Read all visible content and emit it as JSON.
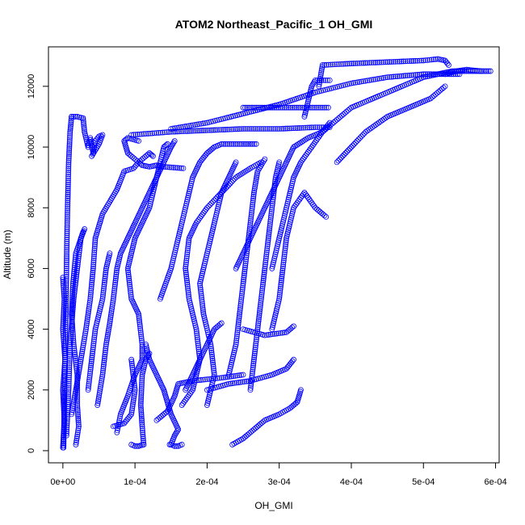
{
  "chart_data": {
    "type": "scatter",
    "title": "ATOM2 Northeast_Pacific_1 OH_GMI",
    "xlabel": "OH_GMI",
    "ylabel": "Altitude (m)",
    "xlim": [
      -2e-05,
      0.000605
    ],
    "ylim": [
      -400,
      13300
    ],
    "x_ticks": [
      0,
      0.0001,
      0.0002,
      0.0003,
      0.0004,
      0.0005,
      0.0006
    ],
    "x_tick_labels": [
      "0e+00",
      "1e-04",
      "2e-04",
      "3e-04",
      "4e-04",
      "5e-04",
      "6e-04"
    ],
    "y_ticks": [
      0,
      2000,
      4000,
      6000,
      8000,
      10000,
      12000
    ],
    "y_tick_labels": [
      "0",
      "2000",
      "4000",
      "6000",
      "8000",
      "10000",
      "12000"
    ],
    "grid": false,
    "legend": "none",
    "marker": "open-circle",
    "point_color": "#0000ff",
    "profiles": [
      [
        [
          0.0,
          100
        ],
        [
          2e-06,
          1000
        ],
        [
          0.0,
          2000
        ],
        [
          3e-06,
          3000
        ],
        [
          0.0,
          4000
        ],
        [
          2e-06,
          5000
        ],
        [
          0.0,
          5700
        ]
      ],
      [
        [
          1e-06,
          100
        ],
        [
          2e-06,
          1500
        ],
        [
          3e-06,
          3000
        ],
        [
          4e-06,
          4500
        ],
        [
          5e-06,
          6000
        ],
        [
          6e-06,
          7500
        ],
        [
          7e-06,
          8500
        ],
        [
          8e-06,
          9500
        ],
        [
          1e-05,
          10500
        ],
        [
          1.2e-05,
          11000
        ]
      ],
      [
        [
          1.2e-05,
          11000
        ],
        [
          2e-05,
          11000
        ],
        [
          2.8e-05,
          10950
        ]
      ],
      [
        [
          2.8e-05,
          10950
        ],
        [
          3e-05,
          10500
        ],
        [
          3.5e-05,
          10000
        ],
        [
          3.8e-05,
          10300
        ],
        [
          4.2e-05,
          9800
        ],
        [
          4.5e-05,
          10200
        ],
        [
          5e-05,
          10350
        ],
        [
          5.5e-05,
          10400
        ],
        [
          5e-05,
          10100
        ],
        [
          4e-05,
          9700
        ]
      ],
      [
        [
          1.8e-05,
          200
        ],
        [
          2.2e-05,
          800
        ],
        [
          2e-05,
          1500
        ],
        [
          2e-05,
          2500
        ],
        [
          1.5e-05,
          3500
        ],
        [
          1.2e-05,
          4500
        ],
        [
          1.4e-05,
          5500
        ],
        [
          1.8e-05,
          6500
        ],
        [
          2.8e-05,
          7200
        ]
      ],
      [
        [
          5e-06,
          500
        ],
        [
          8e-06,
          2000
        ],
        [
          1e-05,
          3500
        ],
        [
          1.5e-05,
          5000
        ],
        [
          2e-05,
          6000
        ],
        [
          2.5e-05,
          7000
        ],
        [
          3e-05,
          7300
        ]
      ],
      [
        [
          1.2e-05,
          1200
        ],
        [
          1.8e-05,
          2000
        ],
        [
          2.5e-05,
          3000
        ],
        [
          3.2e-05,
          4000
        ],
        [
          3.8e-05,
          5000
        ],
        [
          4.2e-05,
          6000
        ],
        [
          4.5e-05,
          7000
        ],
        [
          5.5e-05,
          7800
        ],
        [
          6.5e-05,
          8200
        ],
        [
          7.5e-05,
          8600
        ],
        [
          8.5e-05,
          9200
        ],
        [
          9.8e-05,
          9300
        ],
        [
          0.000105,
          9500
        ],
        [
          0.00011,
          9400
        ],
        [
          0.00012,
          9350
        ],
        [
          0.00013,
          9400
        ],
        [
          0.00014,
          9350
        ],
        [
          0.000167,
          9300
        ]
      ],
      [
        [
          3.5e-05,
          2000
        ],
        [
          4e-05,
          3000
        ],
        [
          4.5e-05,
          4000
        ],
        [
          5.5e-05,
          5000
        ],
        [
          6e-05,
          6000
        ],
        [
          6.5e-05,
          6500
        ]
      ],
      [
        [
          4.8e-05,
          1500
        ],
        [
          5.5e-05,
          2500
        ],
        [
          6e-05,
          3500
        ],
        [
          6.5e-05,
          4200
        ],
        [
          7e-05,
          5000
        ],
        [
          7.5e-05,
          6000
        ],
        [
          8e-05,
          6500
        ],
        [
          9e-05,
          7000
        ],
        [
          0.0001,
          7500
        ],
        [
          0.00011,
          8000
        ],
        [
          0.00012,
          8500
        ],
        [
          0.00013,
          9000
        ],
        [
          0.00014,
          9500
        ],
        [
          0.00015,
          10000
        ],
        [
          0.000155,
          10200
        ]
      ],
      [
        [
          7.5e-05,
          600
        ],
        [
          8e-05,
          1200
        ],
        [
          9e-05,
          1800
        ],
        [
          0.0001,
          2500
        ],
        [
          0.00011,
          3000
        ],
        [
          0.00011,
          3500
        ],
        [
          0.000105,
          4500
        ],
        [
          9.5e-05,
          5000
        ],
        [
          9e-05,
          6000
        ],
        [
          9.5e-05,
          6500
        ],
        [
          0.0001,
          7000
        ],
        [
          0.00011,
          7500
        ],
        [
          0.00012,
          8000
        ],
        [
          0.00013,
          9000
        ],
        [
          0.00014,
          10000
        ],
        [
          0.000145,
          10100
        ]
      ],
      [
        [
          9.5e-05,
          200
        ],
        [
          0.0001,
          150
        ],
        [
          0.000105,
          150
        ],
        [
          0.000112,
          200
        ]
      ],
      [
        [
          0.000112,
          200
        ],
        [
          0.00011,
          800
        ],
        [
          0.000108,
          1500
        ],
        [
          0.00011,
          2500
        ],
        [
          0.000115,
          3000
        ],
        [
          0.00012,
          3200
        ]
      ],
      [
        [
          0.000105,
          10200
        ],
        [
          9e-05,
          10300
        ],
        [
          8.5e-05,
          10200
        ],
        [
          9e-05,
          9800
        ],
        [
          0.000105,
          9500
        ],
        [
          0.00012,
          9800
        ],
        [
          0.000125,
          9700
        ]
      ],
      [
        [
          9.5e-05,
          10400
        ],
        [
          0.00015,
          10500
        ],
        [
          0.0002,
          10550
        ],
        [
          0.00025,
          10600
        ],
        [
          0.0003,
          10600
        ],
        [
          0.00035,
          10650
        ],
        [
          0.00037,
          10650
        ]
      ],
      [
        [
          0.00015,
          200
        ],
        [
          0.000155,
          500
        ],
        [
          0.00016,
          700
        ],
        [
          0.00015,
          1200
        ],
        [
          0.000145,
          1600
        ],
        [
          0.00014,
          2000
        ],
        [
          0.00013,
          2500
        ],
        [
          0.00012,
          3000
        ],
        [
          0.000115,
          3500
        ]
      ],
      [
        [
          0.000148,
          200
        ],
        [
          0.00015,
          200
        ],
        [
          0.000155,
          150
        ],
        [
          0.00016,
          150
        ],
        [
          0.000165,
          200
        ]
      ],
      [
        [
          0.00017,
          2000
        ],
        [
          0.00018,
          2500
        ],
        [
          0.00019,
          3000
        ],
        [
          0.0002,
          3500
        ],
        [
          0.00021,
          4000
        ],
        [
          0.00022,
          4200
        ]
      ],
      [
        [
          0.000165,
          1500
        ],
        [
          0.00018,
          2000
        ],
        [
          0.000185,
          2500
        ],
        [
          0.00019,
          3000
        ],
        [
          0.000185,
          4000
        ],
        [
          0.000175,
          5000
        ],
        [
          0.00017,
          6000
        ],
        [
          0.000175,
          7000
        ],
        [
          0.000185,
          7500
        ],
        [
          0.0002,
          8000
        ],
        [
          0.00022,
          8500
        ],
        [
          0.00024,
          9000
        ],
        [
          0.00026,
          9300
        ],
        [
          0.000275,
          9500
        ]
      ],
      [
        [
          0.0002,
          1500
        ],
        [
          0.00021,
          2500
        ],
        [
          0.000205,
          3500
        ],
        [
          0.000195,
          4500
        ],
        [
          0.00019,
          5500
        ],
        [
          0.0002,
          6500
        ],
        [
          0.00021,
          7500
        ],
        [
          0.00022,
          8500
        ],
        [
          0.00023,
          9000
        ],
        [
          0.00024,
          9500
        ]
      ],
      [
        [
          0.00023,
          2500
        ],
        [
          0.00024,
          3500
        ],
        [
          0.000245,
          4500
        ],
        [
          0.00025,
          5500
        ],
        [
          0.000255,
          6500
        ],
        [
          0.00026,
          7500
        ],
        [
          0.000265,
          8500
        ],
        [
          0.00027,
          9200
        ],
        [
          0.00028,
          9600
        ]
      ],
      [
        [
          0.00026,
          2000
        ],
        [
          0.000265,
          3000
        ],
        [
          0.00027,
          4000
        ],
        [
          0.000275,
          5000
        ],
        [
          0.00028,
          6000
        ],
        [
          0.000285,
          7000
        ],
        [
          0.00029,
          8000
        ],
        [
          0.000295,
          9000
        ],
        [
          0.0003,
          9500
        ]
      ],
      [
        [
          0.000235,
          200
        ],
        [
          0.00025,
          400
        ],
        [
          0.000265,
          700
        ],
        [
          0.00028,
          1000
        ],
        [
          0.0003,
          1200
        ],
        [
          0.000315,
          1400
        ],
        [
          0.000325,
          1600
        ],
        [
          0.00033,
          2000
        ]
      ],
      [
        [
          0.0002,
          2000
        ],
        [
          0.00023,
          2200
        ],
        [
          0.00026,
          2300
        ],
        [
          0.00029,
          2500
        ],
        [
          0.00031,
          2700
        ],
        [
          0.00032,
          3000
        ]
      ],
      [
        [
          0.00025,
          4000
        ],
        [
          0.00028,
          3800
        ],
        [
          0.00031,
          3900
        ],
        [
          0.00032,
          4100
        ]
      ],
      [
        [
          0.00029,
          4000
        ],
        [
          0.0003,
          5000
        ],
        [
          0.000305,
          6000
        ],
        [
          0.00031,
          7000
        ],
        [
          0.00032,
          8000
        ],
        [
          0.000335,
          8500
        ],
        [
          0.00035,
          8000
        ],
        [
          0.000365,
          7700
        ]
      ],
      [
        [
          0.00024,
          6000
        ],
        [
          0.00025,
          6500
        ],
        [
          0.00026,
          7000
        ],
        [
          0.00027,
          7500
        ],
        [
          0.00028,
          8000
        ],
        [
          0.00029,
          8500
        ],
        [
          0.0003,
          9000
        ],
        [
          0.00031,
          9500
        ],
        [
          0.00032,
          10000
        ],
        [
          0.00034,
          10300
        ],
        [
          0.00036,
          10500
        ],
        [
          0.00037,
          10800
        ]
      ],
      [
        [
          0.00025,
          11300
        ],
        [
          0.00028,
          11300
        ],
        [
          0.00031,
          11300
        ],
        [
          0.00034,
          11300
        ],
        [
          0.000368,
          11300
        ]
      ],
      [
        [
          0.00029,
          6000
        ],
        [
          0.0003,
          7000
        ],
        [
          0.00031,
          8000
        ],
        [
          0.00032,
          9000
        ],
        [
          0.00033,
          9500
        ],
        [
          0.00036,
          10500
        ],
        [
          0.0004,
          11300
        ],
        [
          0.00045,
          11800
        ],
        [
          0.0005,
          12300
        ],
        [
          0.00054,
          12500
        ],
        [
          0.00058,
          12500
        ]
      ],
      [
        [
          0.000355,
          12000
        ],
        [
          0.00036,
          12700
        ],
        [
          0.0004,
          12750
        ],
        [
          0.00045,
          12800
        ],
        [
          0.0005,
          12850
        ],
        [
          0.00052,
          12900
        ],
        [
          0.00053,
          12850
        ],
        [
          0.000535,
          12700
        ]
      ],
      [
        [
          0.00053,
          12400
        ],
        [
          0.000545,
          12500
        ],
        [
          0.00056,
          12550
        ],
        [
          0.00058,
          12500
        ],
        [
          0.000593,
          12500
        ]
      ],
      [
        [
          0.00053,
          12000
        ],
        [
          0.00051,
          11600
        ],
        [
          0.00048,
          11300
        ],
        [
          0.00045,
          11000
        ],
        [
          0.00042,
          10500
        ],
        [
          0.0004,
          10000
        ],
        [
          0.00038,
          9500
        ]
      ],
      [
        [
          0.000335,
          11000
        ],
        [
          0.00034,
          11500
        ],
        [
          0.000345,
          12000
        ],
        [
          0.00035,
          12200
        ],
        [
          0.00037,
          12200
        ]
      ],
      [
        [
          0.000135,
          5000
        ],
        [
          0.00015,
          6000
        ],
        [
          0.00016,
          7000
        ],
        [
          0.00017,
          8000
        ],
        [
          0.00018,
          9000
        ],
        [
          0.00019,
          9500
        ],
        [
          0.0002,
          9800
        ],
        [
          0.00021,
          10000
        ],
        [
          0.00022,
          10100
        ],
        [
          0.00025,
          10100
        ],
        [
          0.000268,
          10100
        ]
      ],
      [
        [
          9.5e-05,
          3000
        ],
        [
          0.0001,
          2000
        ],
        [
          9.5e-05,
          1200
        ],
        [
          8.5e-05,
          900
        ],
        [
          7e-05,
          800
        ]
      ],
      [
        [
          0.00013,
          1000
        ],
        [
          0.000145,
          1300
        ],
        [
          0.000155,
          1800
        ],
        [
          0.00016,
          2200
        ],
        [
          0.00018,
          2300
        ],
        [
          0.00022,
          2400
        ],
        [
          0.00025,
          2500
        ]
      ],
      [
        [
          0.00015,
          10600
        ],
        [
          0.0002,
          10800
        ],
        [
          0.00025,
          11100
        ],
        [
          0.0003,
          11400
        ],
        [
          0.00035,
          11800
        ],
        [
          0.0004,
          12100
        ],
        [
          0.00045,
          12300
        ],
        [
          0.0005,
          12400
        ],
        [
          0.00055,
          12400
        ]
      ]
    ]
  }
}
